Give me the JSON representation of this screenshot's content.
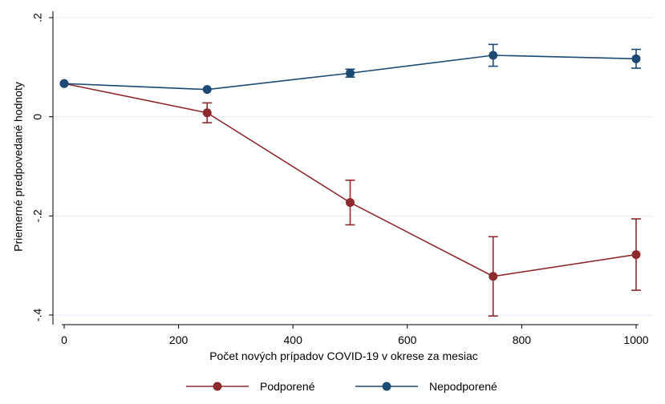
{
  "chart_data": {
    "type": "line",
    "title": "",
    "xlabel": "Počet nových prípadov COVID-19 v okrese za mesiac",
    "ylabel": "Priemerné predpovedané hodnoty",
    "x": [
      0,
      250,
      500,
      750,
      1000
    ],
    "xlim": [
      0,
      1000
    ],
    "ylim": [
      -0.4,
      0.2
    ],
    "x_ticks": [
      0,
      200,
      400,
      600,
      800,
      1000
    ],
    "x_tick_labels": [
      "0",
      "200",
      "400",
      "600",
      "800",
      "1000"
    ],
    "y_ticks": [
      -0.4,
      -0.2,
      0,
      0.2
    ],
    "y_tick_labels": [
      "-.4",
      "-.2",
      "0",
      ".2"
    ],
    "grid": "horizontal",
    "legend_position": "bottom",
    "series": [
      {
        "name": "Podporené",
        "color": "#8c2a2d",
        "values": [
          0.067,
          0.008,
          -0.173,
          -0.322,
          -0.278
        ],
        "ci_low": [
          0.067,
          -0.012,
          -0.218,
          -0.402,
          -0.35
        ],
        "ci_high": [
          0.067,
          0.028,
          -0.128,
          -0.242,
          -0.206
        ]
      },
      {
        "name": "Nepodporené",
        "color": "#1b4a72",
        "values": [
          0.067,
          0.055,
          0.088,
          0.124,
          0.117
        ],
        "ci_low": [
          0.067,
          0.055,
          0.08,
          0.102,
          0.098
        ],
        "ci_high": [
          0.067,
          0.055,
          0.096,
          0.146,
          0.136
        ]
      }
    ]
  }
}
